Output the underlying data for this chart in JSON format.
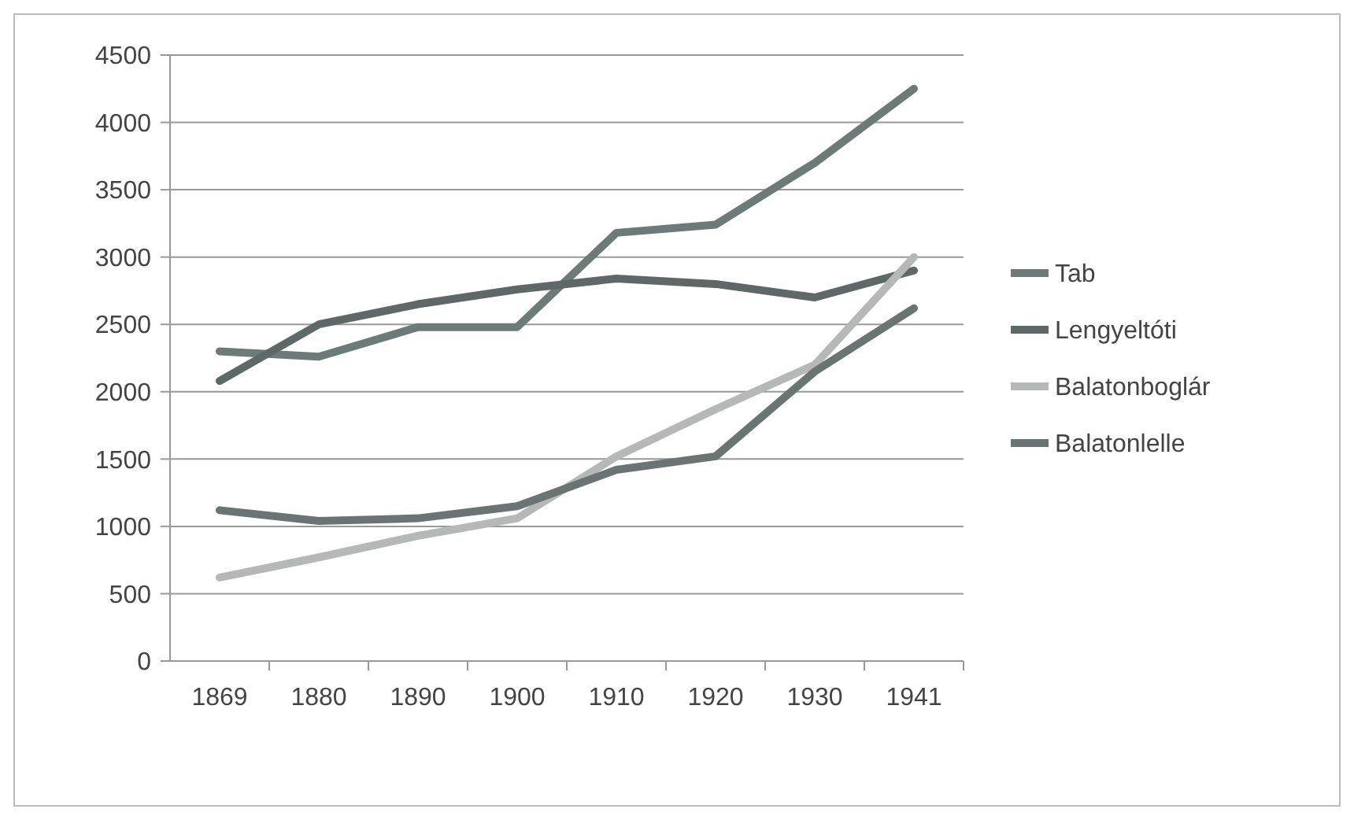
{
  "chart_data": {
    "type": "line",
    "categories": [
      "1869",
      "1880",
      "1890",
      "1900",
      "1910",
      "1920",
      "1930",
      "1941"
    ],
    "series": [
      {
        "name": "Tab",
        "color": "#6d7b78",
        "values": [
          2300,
          2260,
          2480,
          2480,
          3180,
          3240,
          3700,
          4250
        ]
      },
      {
        "name": "Lengyeltóti",
        "color": "#5e6866",
        "values": [
          2080,
          2500,
          2650,
          2760,
          2840,
          2800,
          2700,
          2900
        ]
      },
      {
        "name": "Balatonboglár",
        "color": "#b5b8b7",
        "values": [
          620,
          770,
          930,
          1060,
          1520,
          1870,
          2200,
          3000
        ]
      },
      {
        "name": "Balatonlelle",
        "color": "#6a7573",
        "values": [
          1120,
          1040,
          1060,
          1150,
          1420,
          1520,
          2150,
          2620
        ]
      }
    ],
    "ylim": [
      0,
      4500
    ],
    "yticks": [
      0,
      500,
      1000,
      1500,
      2000,
      2500,
      3000,
      3500,
      4000,
      4500
    ],
    "grid": "y",
    "legend": "right",
    "marker": "none",
    "line_style": "solid"
  }
}
